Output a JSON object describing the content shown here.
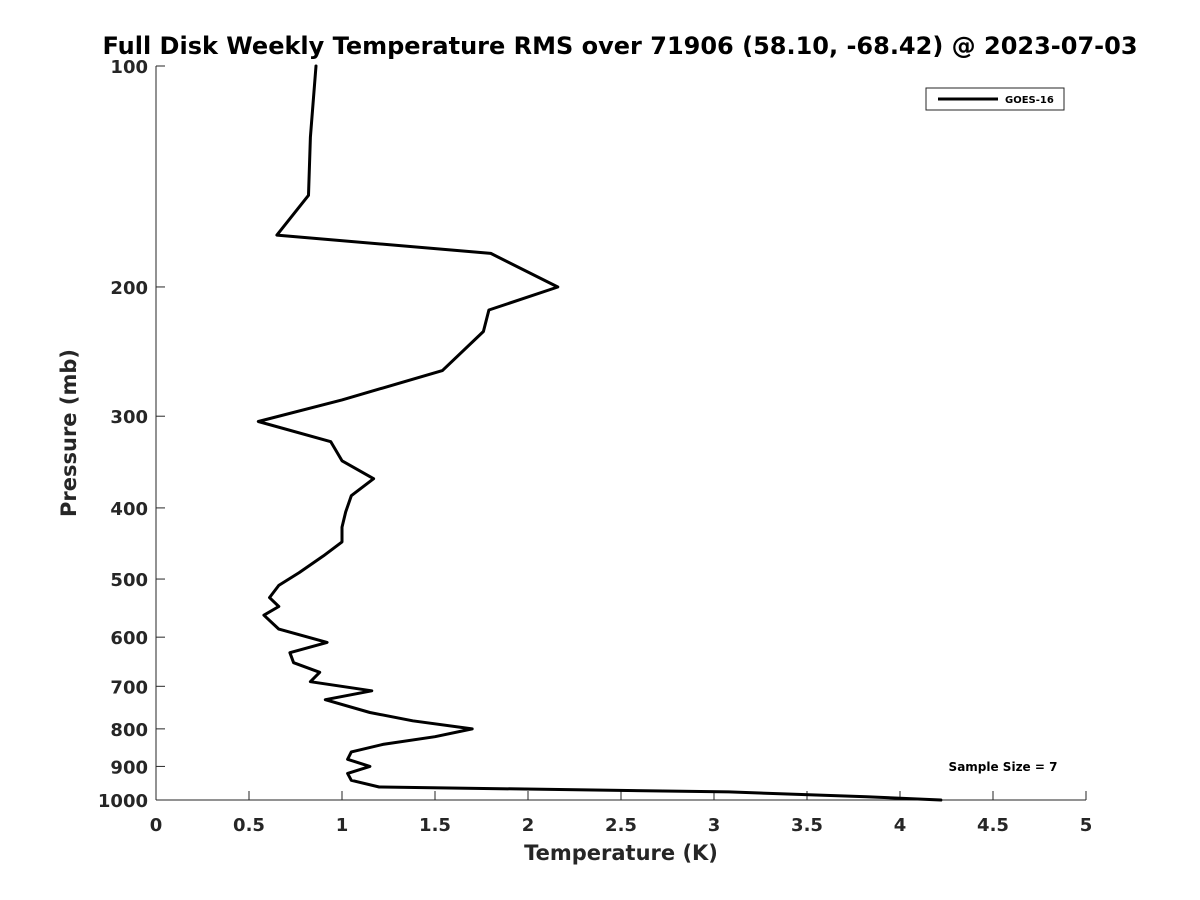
{
  "chart_data": {
    "type": "line",
    "title": "Full Disk Weekly Temperature RMS over 71906 (58.10, -68.42) @ 2023-07-03",
    "xlabel": "Temperature (K)",
    "ylabel": "Pressure (mb)",
    "xlim": [
      0,
      5
    ],
    "ylim": [
      100,
      1000
    ],
    "y_scale": "log",
    "y_reversed": true,
    "grid": false,
    "legend_position": "top-right",
    "x_ticks": [
      0,
      0.5,
      1,
      1.5,
      2,
      2.5,
      3,
      3.5,
      4,
      4.5,
      5
    ],
    "x_tick_labels": [
      "0",
      "0.5",
      "1",
      "1.5",
      "2",
      "2.5",
      "3",
      "3.5",
      "4",
      "4.5",
      "5"
    ],
    "y_ticks": [
      100,
      200,
      300,
      400,
      500,
      600,
      700,
      800,
      900,
      1000
    ],
    "y_tick_labels": [
      "100",
      "200",
      "300",
      "400",
      "500",
      "600",
      "700",
      "800",
      "900",
      "1000"
    ],
    "series": [
      {
        "name": "GOES-16",
        "color": "#000000",
        "x": [
          0.86,
          0.83,
          0.82,
          0.65,
          1.8,
          2.16,
          1.79,
          1.76,
          1.54,
          1.0,
          0.55,
          0.94,
          1.0,
          1.17,
          1.05,
          1.02,
          1.0,
          1.0,
          0.9,
          0.77,
          0.66,
          0.61,
          0.66,
          0.58,
          0.66,
          0.92,
          0.72,
          0.74,
          0.88,
          0.83,
          1.16,
          0.91,
          1.15,
          1.38,
          1.7,
          1.5,
          1.22,
          1.05,
          1.03,
          1.15,
          1.03,
          1.05,
          1.2,
          3.08,
          3.82,
          4.22
        ],
        "y": [
          100,
          125,
          150,
          170,
          180,
          200,
          215,
          230,
          260,
          285,
          305,
          325,
          345,
          365,
          385,
          405,
          425,
          445,
          465,
          490,
          510,
          530,
          545,
          560,
          585,
          610,
          630,
          650,
          670,
          690,
          710,
          730,
          760,
          780,
          800,
          820,
          840,
          860,
          880,
          900,
          920,
          940,
          960,
          975,
          990,
          1000
        ]
      }
    ],
    "annotations": [
      {
        "text": "Sample Size = 7"
      }
    ]
  }
}
